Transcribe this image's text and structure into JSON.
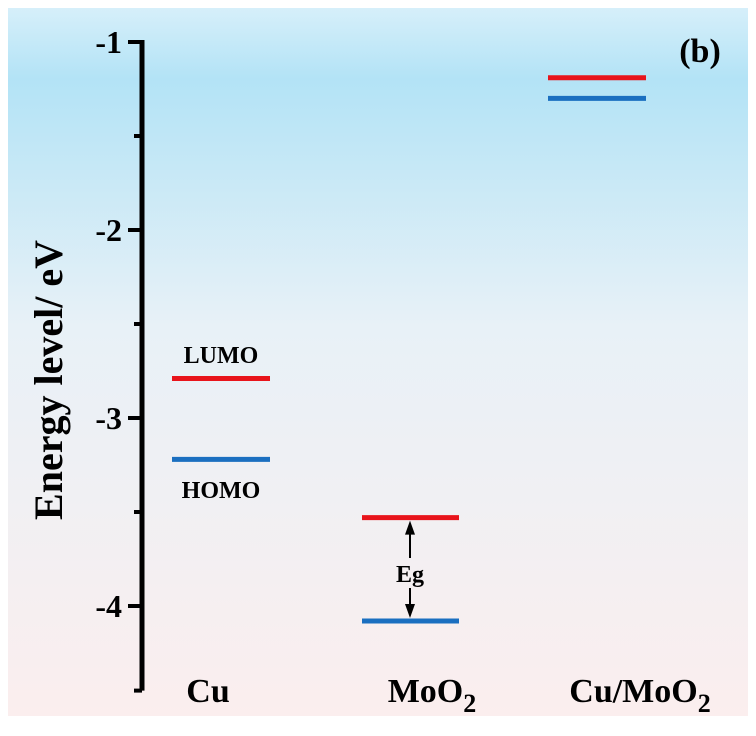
{
  "chart_data": {
    "type": "energy-level diagram",
    "panel_label": "(b)",
    "ylabel": "Energy level/ eV",
    "ylim": [
      -4.5,
      -1
    ],
    "yticks": [
      -1,
      -2,
      -3,
      -4
    ],
    "ytick_labels": [
      "-1",
      "-2",
      "-3",
      "-4"
    ],
    "categories": [
      {
        "label": "Cu",
        "sub": ""
      },
      {
        "label": "MoO",
        "sub": "2"
      },
      {
        "label": "Cu/MoO",
        "sub": "2"
      }
    ],
    "series": [
      {
        "name": "LUMO",
        "color": "#e8141b",
        "values": [
          -2.79,
          -3.53,
          -1.19
        ]
      },
      {
        "name": "HOMO",
        "color": "#1a6fc0",
        "values": [
          -3.22,
          -4.08,
          -1.3
        ]
      }
    ],
    "annotations": {
      "lumo_label": "LUMO",
      "homo_label": "HOMO",
      "gap_label": "Eg"
    },
    "background": {
      "top": "#b3e3f6",
      "bottom": "#fbeeee"
    }
  }
}
